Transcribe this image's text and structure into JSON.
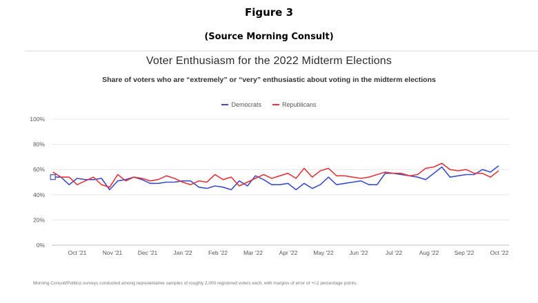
{
  "header": {
    "figure_label": "Figure 3",
    "source": "(Source Morning Consult)"
  },
  "footnote": "Morning Consult/Politico surveys conducted among representative samples of roughly 2,000 registered voters each, with margins of error of +/-2 percentage points.",
  "chart_data": {
    "type": "line",
    "title": "Voter Enthusiasm for the 2022 Midterm Elections",
    "subtitle": "Share of voters who are “extremely” or “very” enthusiastic about voting in the midterm elections",
    "xlabel": "",
    "ylabel": "",
    "legend_position": "top-center",
    "grid": true,
    "ylim": [
      0,
      100
    ],
    "y_ticks": [
      "0%",
      "20%",
      "40%",
      "60%",
      "80%",
      "100%"
    ],
    "y_tick_values": [
      0,
      20,
      40,
      60,
      80,
      100
    ],
    "x_ticks": [
      "Oct '21",
      "Nov '21",
      "Dec '21",
      "Jan '22",
      "Feb '22",
      "Mar '22",
      "Apr '22",
      "May '22",
      "Jun '22",
      "Jul '22",
      "Aug '22",
      "Sep '22",
      "Oct '22"
    ],
    "x_start": "2021-09-18",
    "x_end": "2022-10-18",
    "series": [
      {
        "name": "Democrats",
        "color": "#3b4bc8",
        "points": [
          [
            "2021-09-19",
            54
          ],
          [
            "2021-09-26",
            54
          ],
          [
            "2021-10-03",
            48
          ],
          [
            "2021-10-10",
            53
          ],
          [
            "2021-10-17",
            52
          ],
          [
            "2021-10-24",
            52
          ],
          [
            "2021-10-31",
            53
          ],
          [
            "2021-11-07",
            44
          ],
          [
            "2021-11-14",
            51
          ],
          [
            "2021-11-21",
            52
          ],
          [
            "2021-11-28",
            54
          ],
          [
            "2021-12-05",
            52
          ],
          [
            "2021-12-12",
            49
          ],
          [
            "2021-12-19",
            49
          ],
          [
            "2021-12-26",
            50
          ],
          [
            "2022-01-02",
            50
          ],
          [
            "2022-01-09",
            51
          ],
          [
            "2022-01-16",
            51
          ],
          [
            "2022-01-23",
            46
          ],
          [
            "2022-01-30",
            45
          ],
          [
            "2022-02-06",
            47
          ],
          [
            "2022-02-13",
            46
          ],
          [
            "2022-02-20",
            44
          ],
          [
            "2022-02-27",
            51
          ],
          [
            "2022-03-06",
            47
          ],
          [
            "2022-03-13",
            55
          ],
          [
            "2022-03-20",
            52
          ],
          [
            "2022-03-27",
            48
          ],
          [
            "2022-04-03",
            48
          ],
          [
            "2022-04-10",
            49
          ],
          [
            "2022-04-17",
            44
          ],
          [
            "2022-04-24",
            49
          ],
          [
            "2022-05-01",
            45
          ],
          [
            "2022-05-08",
            48
          ],
          [
            "2022-05-15",
            54
          ],
          [
            "2022-05-22",
            48
          ],
          [
            "2022-05-29",
            49
          ],
          [
            "2022-06-05",
            50
          ],
          [
            "2022-06-12",
            51
          ],
          [
            "2022-06-19",
            48
          ],
          [
            "2022-06-26",
            48
          ],
          [
            "2022-07-03",
            57
          ],
          [
            "2022-07-10",
            57
          ],
          [
            "2022-07-17",
            56
          ],
          [
            "2022-07-24",
            55
          ],
          [
            "2022-07-31",
            54
          ],
          [
            "2022-08-07",
            52
          ],
          [
            "2022-08-14",
            57
          ],
          [
            "2022-08-21",
            62
          ],
          [
            "2022-08-28",
            54
          ],
          [
            "2022-09-04",
            55
          ],
          [
            "2022-09-11",
            56
          ],
          [
            "2022-09-18",
            56
          ],
          [
            "2022-09-25",
            60
          ],
          [
            "2022-10-02",
            58
          ],
          [
            "2022-10-09",
            63
          ]
        ]
      },
      {
        "name": "Republicans",
        "color": "#e0343b",
        "points": [
          [
            "2021-09-19",
            58
          ],
          [
            "2021-09-26",
            54
          ],
          [
            "2021-10-03",
            54
          ],
          [
            "2021-10-10",
            48
          ],
          [
            "2021-10-17",
            51
          ],
          [
            "2021-10-24",
            54
          ],
          [
            "2021-10-31",
            48
          ],
          [
            "2021-11-07",
            46
          ],
          [
            "2021-11-14",
            56
          ],
          [
            "2021-11-21",
            51
          ],
          [
            "2021-11-28",
            54
          ],
          [
            "2021-12-05",
            53
          ],
          [
            "2021-12-12",
            51
          ],
          [
            "2021-12-19",
            52
          ],
          [
            "2021-12-26",
            55
          ],
          [
            "2022-01-02",
            53
          ],
          [
            "2022-01-09",
            50
          ],
          [
            "2022-01-16",
            48
          ],
          [
            "2022-01-23",
            51
          ],
          [
            "2022-01-30",
            50
          ],
          [
            "2022-02-06",
            56
          ],
          [
            "2022-02-13",
            52
          ],
          [
            "2022-02-20",
            54
          ],
          [
            "2022-02-27",
            47
          ],
          [
            "2022-03-06",
            50
          ],
          [
            "2022-03-13",
            53
          ],
          [
            "2022-03-20",
            56
          ],
          [
            "2022-03-27",
            53
          ],
          [
            "2022-04-03",
            55
          ],
          [
            "2022-04-10",
            57
          ],
          [
            "2022-04-17",
            53
          ],
          [
            "2022-04-24",
            61
          ],
          [
            "2022-05-01",
            54
          ],
          [
            "2022-05-08",
            59
          ],
          [
            "2022-05-15",
            61
          ],
          [
            "2022-05-22",
            55
          ],
          [
            "2022-05-29",
            55
          ],
          [
            "2022-06-05",
            54
          ],
          [
            "2022-06-12",
            53
          ],
          [
            "2022-06-19",
            54
          ],
          [
            "2022-06-26",
            56
          ],
          [
            "2022-07-03",
            58
          ],
          [
            "2022-07-10",
            57
          ],
          [
            "2022-07-17",
            57
          ],
          [
            "2022-07-24",
            55
          ],
          [
            "2022-07-31",
            56
          ],
          [
            "2022-08-07",
            61
          ],
          [
            "2022-08-14",
            62
          ],
          [
            "2022-08-21",
            65
          ],
          [
            "2022-08-28",
            60
          ],
          [
            "2022-09-04",
            59
          ],
          [
            "2022-09-11",
            60
          ],
          [
            "2022-09-18",
            57
          ],
          [
            "2022-09-25",
            57
          ],
          [
            "2022-10-02",
            54
          ],
          [
            "2022-10-09",
            59
          ]
        ]
      }
    ]
  }
}
